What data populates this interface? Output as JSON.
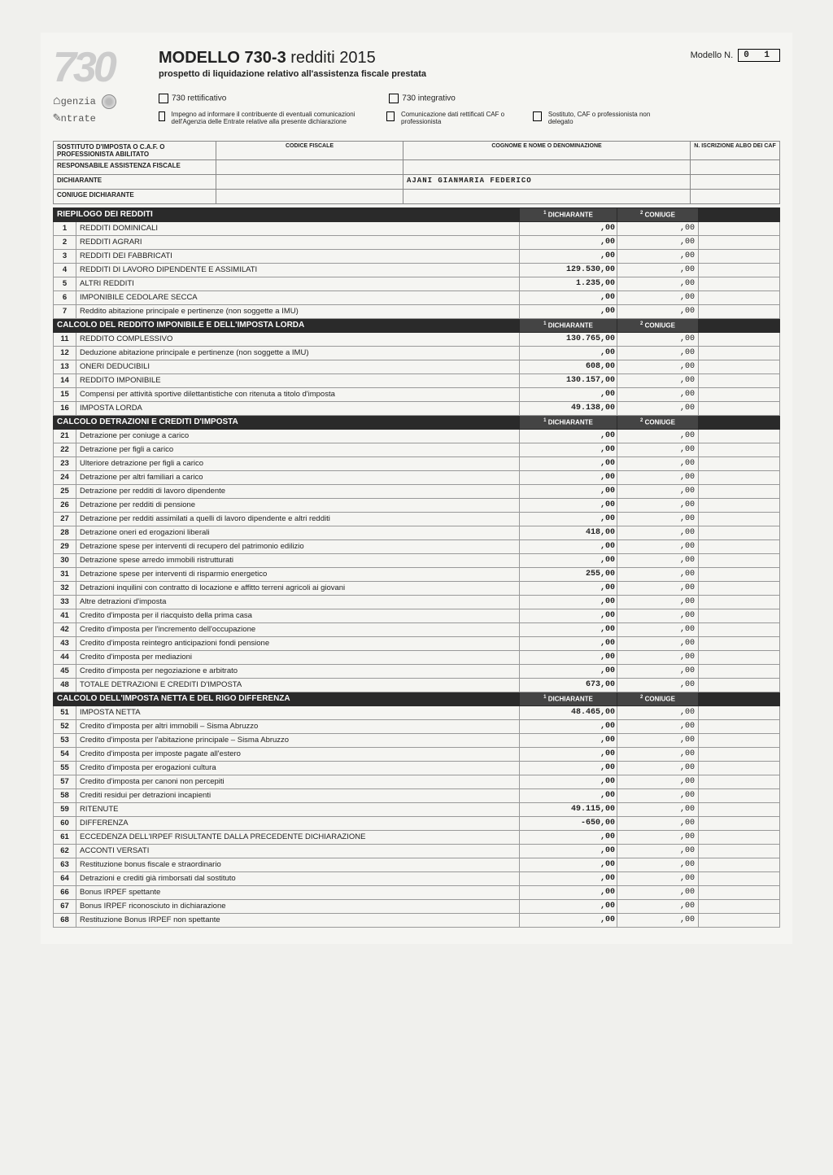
{
  "header": {
    "title_a": "MODELLO 730-3",
    "title_b": "redditi 2015",
    "subtitle": "prospetto di liquidazione relativo all'assistenza fiscale prestata",
    "modello_label": "Modello N.",
    "modello_value": "0 1",
    "cb_rettificativo": "730 rettificativo",
    "cb_integrativo": "730 integrativo",
    "cb_impegno": "Impegno ad informare il contribuente di eventuali comunicazioni dell'Agenzia delle Entrate relative alla presente dichiarazione",
    "cb_comunicazione": "Comunicazione dati rettificati CAF o professionista",
    "cb_sostituto": "Sostituto, CAF o professionista non delegato",
    "logo_agenzia_a": "genzia",
    "logo_agenzia_b": "ntrate"
  },
  "ident": {
    "row1_label": "SOSTITUTO D'IMPOSTA O C.A.F. O PROFESSIONISTA ABILITATO",
    "codice_fiscale_h": "CODICE FISCALE",
    "cognome_h": "COGNOME E NOME O DENOMINAZIONE",
    "iscrizione_h": "N. ISCRIZIONE ALBO DEI CAF",
    "row2_label": "RESPONSABILE ASSISTENZA FISCALE",
    "row3_label": "DICHIARANTE",
    "dichiarante_name": "AJANI GIANMARIA FEDERICO",
    "row4_label": "CONIUGE DICHIARANTE"
  },
  "sections": [
    {
      "title": "RIEPILOGO DEI REDDITI",
      "col1": "DICHIARANTE",
      "col2": "CONIUGE",
      "rows": [
        {
          "n": "1",
          "d": "REDDITI DOMINICALI",
          "v1": ",00",
          "v2": ",00",
          "caps": true
        },
        {
          "n": "2",
          "d": "REDDITI AGRARI",
          "v1": ",00",
          "v2": ",00",
          "caps": true
        },
        {
          "n": "3",
          "d": "REDDITI DEI FABBRICATI",
          "v1": ",00",
          "v2": ",00",
          "caps": true
        },
        {
          "n": "4",
          "d": "REDDITI DI LAVORO DIPENDENTE E ASSIMILATI",
          "v1": "129.530,00",
          "v2": ",00",
          "caps": true
        },
        {
          "n": "5",
          "d": "ALTRI REDDITI",
          "v1": "1.235,00",
          "v2": ",00",
          "caps": true
        },
        {
          "n": "6",
          "d": "IMPONIBILE CEDOLARE SECCA",
          "v1": ",00",
          "v2": ",00",
          "caps": true
        },
        {
          "n": "7",
          "d": "Reddito abitazione principale e pertinenze (non soggette a IMU)",
          "v1": ",00",
          "v2": ",00"
        }
      ]
    },
    {
      "title": "CALCOLO DEL REDDITO IMPONIBILE E DELL'IMPOSTA LORDA",
      "col1": "DICHIARANTE",
      "col2": "CONIUGE",
      "rows": [
        {
          "n": "11",
          "d": "REDDITO COMPLESSIVO",
          "v1": "130.765,00",
          "v2": ",00",
          "caps": true
        },
        {
          "n": "12",
          "d": "Deduzione abitazione principale e pertinenze (non soggette a IMU)",
          "v1": ",00",
          "v2": ",00"
        },
        {
          "n": "13",
          "d": "ONERI DEDUCIBILI",
          "v1": "608,00",
          "v2": ",00",
          "caps": true
        },
        {
          "n": "14",
          "d": "REDDITO IMPONIBILE",
          "v1": "130.157,00",
          "v2": ",00",
          "caps": true
        },
        {
          "n": "15",
          "d": "Compensi per attività sportive dilettantistiche con ritenuta a titolo d'imposta",
          "v1": ",00",
          "v2": ",00"
        },
        {
          "n": "16",
          "d": "IMPOSTA LORDA",
          "v1": "49.138,00",
          "v2": ",00",
          "caps": true
        }
      ]
    },
    {
      "title": "CALCOLO DETRAZIONI E CREDITI D'IMPOSTA",
      "col1": "DICHIARANTE",
      "col2": "CONIUGE",
      "rows": [
        {
          "n": "21",
          "d": "Detrazione per coniuge a carico",
          "v1": ",00",
          "v2": ",00"
        },
        {
          "n": "22",
          "d": "Detrazione per figli a carico",
          "v1": ",00",
          "v2": ",00"
        },
        {
          "n": "23",
          "d": "Ulteriore detrazione per figli a carico",
          "v1": ",00",
          "v2": ",00"
        },
        {
          "n": "24",
          "d": "Detrazione per altri familiari a carico",
          "v1": ",00",
          "v2": ",00"
        },
        {
          "n": "25",
          "d": "Detrazione per redditi di lavoro dipendente",
          "v1": ",00",
          "v2": ",00"
        },
        {
          "n": "26",
          "d": "Detrazione per redditi di pensione",
          "v1": ",00",
          "v2": ",00"
        },
        {
          "n": "27",
          "d": "Detrazione per redditi assimilati a quelli di lavoro dipendente e altri redditi",
          "v1": ",00",
          "v2": ",00"
        },
        {
          "n": "28",
          "d": "Detrazione oneri ed erogazioni liberali",
          "v1": "418,00",
          "v2": ",00"
        },
        {
          "n": "29",
          "d": "Detrazione spese per interventi di recupero del patrimonio edilizio",
          "v1": ",00",
          "v2": ",00"
        },
        {
          "n": "30",
          "d": "Detrazione spese arredo immobili ristrutturati",
          "v1": ",00",
          "v2": ",00"
        },
        {
          "n": "31",
          "d": "Detrazione spese per interventi di risparmio energetico",
          "v1": "255,00",
          "v2": ",00"
        },
        {
          "n": "32",
          "d": "Detrazioni inquilini con contratto di locazione e affitto terreni agricoli ai giovani",
          "v1": ",00",
          "v2": ",00"
        },
        {
          "n": "33",
          "d": "Altre detrazioni d'imposta",
          "v1": ",00",
          "v2": ",00"
        },
        {
          "n": "41",
          "d": "Credito d'imposta per il riacquisto della prima casa",
          "v1": ",00",
          "v2": ",00"
        },
        {
          "n": "42",
          "d": "Credito d'imposta per l'incremento dell'occupazione",
          "v1": ",00",
          "v2": ",00"
        },
        {
          "n": "43",
          "d": "Credito d'imposta reintegro anticipazioni fondi pensione",
          "v1": ",00",
          "v2": ",00"
        },
        {
          "n": "44",
          "d": "Credito d'imposta per mediazioni",
          "v1": ",00",
          "v2": ",00"
        },
        {
          "n": "45",
          "d": "Credito d'imposta per negoziazione e arbitrato",
          "v1": ",00",
          "v2": ",00"
        },
        {
          "n": "48",
          "d": "TOTALE DETRAZIONI E CREDITI D'IMPOSTA",
          "v1": "673,00",
          "v2": ",00",
          "caps": true
        }
      ]
    },
    {
      "title": "CALCOLO DELL'IMPOSTA NETTA E DEL RIGO DIFFERENZA",
      "col1": "DICHIARANTE",
      "col2": "CONIUGE",
      "rows": [
        {
          "n": "51",
          "d": "IMPOSTA NETTA",
          "v1": "48.465,00",
          "v2": ",00",
          "caps": true
        },
        {
          "n": "52",
          "d": "Credito d'imposta per altri immobili – Sisma Abruzzo",
          "v1": ",00",
          "v2": ",00"
        },
        {
          "n": "53",
          "d": "Credito d'imposta per l'abitazione principale – Sisma Abruzzo",
          "v1": ",00",
          "v2": ",00"
        },
        {
          "n": "54",
          "d": "Credito d'imposta per imposte pagate all'estero",
          "v1": ",00",
          "v2": ",00"
        },
        {
          "n": "55",
          "d": "Credito d'imposta per erogazioni cultura",
          "v1": ",00",
          "v2": ",00"
        },
        {
          "n": "57",
          "d": "Credito d'imposta per canoni non percepiti",
          "v1": ",00",
          "v2": ",00"
        },
        {
          "n": "58",
          "d": "Crediti residui per detrazioni incapienti",
          "v1": ",00",
          "v2": ",00"
        },
        {
          "n": "59",
          "d": "RITENUTE",
          "v1": "49.115,00",
          "v2": ",00",
          "caps": true
        },
        {
          "n": "60",
          "d": "DIFFERENZA",
          "v1": "-650,00",
          "v2": ",00",
          "caps": true
        },
        {
          "n": "61",
          "d": "ECCEDENZA DELL'IRPEF RISULTANTE DALLA PRECEDENTE DICHIARAZIONE",
          "v1": ",00",
          "v2": ",00",
          "caps": true
        },
        {
          "n": "62",
          "d": "ACCONTI VERSATI",
          "v1": ",00",
          "v2": ",00",
          "caps": true
        },
        {
          "n": "63",
          "d": "Restituzione bonus fiscale e straordinario",
          "v1": ",00",
          "v2": ",00"
        },
        {
          "n": "64",
          "d": "Detrazioni e crediti già rimborsati dal sostituto",
          "v1": ",00",
          "v2": ",00"
        },
        {
          "n": "66",
          "d": "Bonus IRPEF spettante",
          "v1": ",00",
          "v2": ",00"
        },
        {
          "n": "67",
          "d": "Bonus IRPEF riconosciuto in dichiarazione",
          "v1": ",00",
          "v2": ",00"
        },
        {
          "n": "68",
          "d": "Restituzione Bonus IRPEF non spettante",
          "v1": ",00",
          "v2": ",00"
        }
      ]
    }
  ],
  "style": {
    "section_bg": "#2a2a2a",
    "section_fg": "#ffffff",
    "border": "#999999",
    "page_bg": "#f5f5f2"
  }
}
